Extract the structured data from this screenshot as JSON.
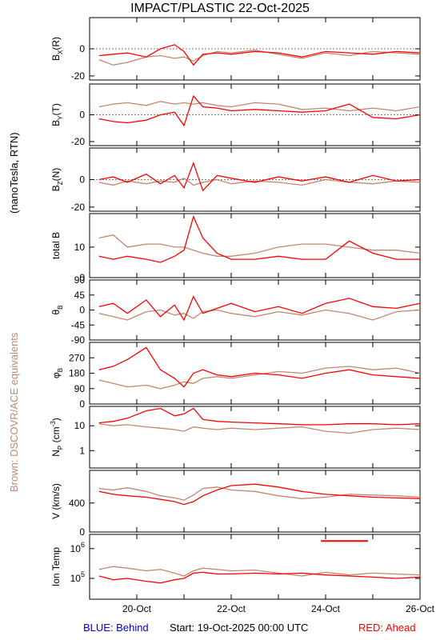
{
  "header": {
    "title": "IMPACT/PLASTIC   22-Oct-2025"
  },
  "side": {
    "units_label": "(nanoTesla, RTN)",
    "equiv_label": "Brown: DSCOVR/ACE equivalents"
  },
  "footer": {
    "behind_label": "BLUE: Behind",
    "start_label": "Start: 19-Oct-2025 00:00 UTC",
    "ahead_label": "RED: Ahead"
  },
  "colors": {
    "ahead": "#ff0000",
    "behind": "#0000cc",
    "reference": "#c08870",
    "axis": "#000000",
    "zero_line": "#555555"
  },
  "chart_data": {
    "type": "line",
    "x_ticks": [
      "20-Oct",
      "22-Oct",
      "24-Oct",
      "26-Oct"
    ],
    "x_range_days": [
      19.0,
      26.0
    ],
    "panels": [
      {
        "name": "Bx",
        "ylabel": "BX(R)",
        "label_main": "B",
        "label_sub": "X",
        "label_tail": "(R)",
        "ylim": [
          -23,
          23
        ],
        "ticks": [
          "0",
          "-20"
        ],
        "tick_values": [
          0,
          -20
        ],
        "zero_line": true,
        "series": [
          {
            "name": "Ahead",
            "x": [
              19.2,
              19.5,
              19.8,
              20.2,
              20.5,
              20.8,
              21.0,
              21.2,
              21.4,
              21.7,
              22.0,
              22.5,
              23.0,
              23.5,
              24.0,
              24.5,
              25.0,
              25.5,
              26.0
            ],
            "y": [
              -5,
              -4,
              -3,
              -6,
              0,
              3,
              -2,
              -12,
              -4,
              -3,
              -4,
              -2,
              -3,
              -6,
              -2,
              -3,
              -4,
              -2,
              -3
            ]
          },
          {
            "name": "DSCOVR/ACE",
            "x": [
              19.2,
              19.5,
              19.8,
              20.2,
              20.5,
              20.8,
              21.0,
              21.2,
              21.4,
              21.7,
              22.0,
              22.5,
              23.0,
              23.5,
              24.0,
              24.5,
              25.0,
              25.5,
              26.0
            ],
            "y": [
              -8,
              -12,
              -10,
              -6,
              -5,
              -7,
              -6,
              -9,
              -5,
              -2,
              -3,
              -1,
              -4,
              -7,
              -3,
              -5,
              -2,
              -3,
              -4
            ]
          }
        ]
      },
      {
        "name": "By",
        "ylabel": "BY(T)",
        "label_main": "B",
        "label_sub": "Y",
        "label_tail": "(T)",
        "ylim": [
          -23,
          23
        ],
        "ticks": [
          "0",
          "-20"
        ],
        "tick_values": [
          0,
          -20
        ],
        "zero_line": true,
        "series": [
          {
            "name": "Ahead",
            "x": [
              19.2,
              19.5,
              19.8,
              20.2,
              20.5,
              20.8,
              21.0,
              21.2,
              21.4,
              21.7,
              22.0,
              22.5,
              23.0,
              23.5,
              24.0,
              24.5,
              25.0,
              25.5,
              26.0
            ],
            "y": [
              -3,
              -5,
              -6,
              -4,
              0,
              2,
              -8,
              14,
              6,
              5,
              3,
              4,
              3,
              2,
              3,
              8,
              -2,
              -3,
              0
            ]
          },
          {
            "name": "DSCOVR/ACE",
            "x": [
              19.2,
              19.5,
              19.8,
              20.2,
              20.5,
              20.8,
              21.0,
              21.2,
              21.4,
              21.7,
              22.0,
              22.5,
              23.0,
              23.5,
              24.0,
              24.5,
              25.0,
              25.5,
              26.0
            ],
            "y": [
              6,
              8,
              9,
              7,
              10,
              8,
              9,
              8,
              9,
              7,
              6,
              9,
              8,
              4,
              5,
              3,
              5,
              3,
              6
            ]
          }
        ]
      },
      {
        "name": "Bz",
        "ylabel": "BZ(N)",
        "label_main": "B",
        "label_sub": "Z",
        "label_tail": "(N)",
        "ylim": [
          -23,
          23
        ],
        "ticks": [
          "0",
          "-20"
        ],
        "tick_values": [
          0,
          -20
        ],
        "zero_line": true,
        "series": [
          {
            "name": "Ahead",
            "x": [
              19.2,
              19.5,
              19.8,
              20.2,
              20.5,
              20.8,
              21.0,
              21.2,
              21.4,
              21.7,
              22.0,
              22.5,
              23.0,
              23.5,
              24.0,
              24.5,
              25.0,
              25.5,
              26.0
            ],
            "y": [
              0,
              2,
              -2,
              4,
              -3,
              3,
              -6,
              12,
              -8,
              3,
              1,
              -2,
              2,
              -1,
              2,
              -2,
              3,
              -1,
              0
            ]
          },
          {
            "name": "DSCOVR/ACE",
            "x": [
              19.2,
              19.5,
              19.8,
              20.2,
              20.5,
              20.8,
              21.0,
              21.2,
              21.4,
              21.7,
              22.0,
              22.5,
              23.0,
              23.5,
              24.0,
              24.5,
              25.0,
              25.5,
              26.0
            ],
            "y": [
              -2,
              -4,
              -1,
              -3,
              -1,
              -2,
              1,
              -4,
              -2,
              0,
              -3,
              -1,
              -2,
              -4,
              0,
              -2,
              -3,
              -1,
              -2
            ]
          }
        ]
      },
      {
        "name": "B",
        "ylabel": "total B",
        "label_main": "total B",
        "label_sub": "",
        "label_tail": "",
        "ylim": [
          0,
          21
        ],
        "ticks": [
          "10",
          "0"
        ],
        "tick_values": [
          10,
          0
        ],
        "zero_line": false,
        "series": [
          {
            "name": "Ahead",
            "x": [
              19.2,
              19.5,
              19.8,
              20.2,
              20.5,
              20.8,
              21.0,
              21.2,
              21.4,
              21.7,
              22.0,
              22.5,
              23.0,
              23.5,
              24.0,
              24.5,
              25.0,
              25.5,
              26.0
            ],
            "y": [
              7,
              6,
              7,
              6,
              5,
              7,
              9,
              20,
              13,
              8,
              6,
              6,
              7,
              6,
              6,
              12,
              8,
              6,
              6
            ]
          },
          {
            "name": "DSCOVR/ACE",
            "x": [
              19.2,
              19.5,
              19.8,
              20.2,
              20.5,
              20.8,
              21.0,
              21.2,
              21.4,
              21.7,
              22.0,
              22.5,
              23.0,
              23.5,
              24.0,
              24.5,
              25.0,
              25.5,
              26.0
            ],
            "y": [
              13,
              14,
              10,
              11,
              11,
              10,
              10,
              9,
              8,
              7,
              7,
              8,
              10,
              11,
              11,
              10,
              9,
              9,
              8
            ]
          }
        ]
      },
      {
        "name": "theta",
        "ylabel": "θB",
        "label_main": "θ",
        "label_sub": "B",
        "label_tail": "",
        "ylim": [
          -90,
          90
        ],
        "ticks": [
          "90",
          "45",
          "0",
          "-45",
          "-90"
        ],
        "tick_values": [
          90,
          45,
          0,
          -45,
          -90
        ],
        "zero_line": false,
        "series": [
          {
            "name": "Ahead",
            "x": [
              19.2,
              19.5,
              19.8,
              20.2,
              20.5,
              20.8,
              21.0,
              21.2,
              21.4,
              21.7,
              22.0,
              22.5,
              23.0,
              23.5,
              24.0,
              24.5,
              25.0,
              25.5,
              26.0
            ],
            "y": [
              10,
              20,
              -10,
              30,
              -20,
              15,
              -30,
              40,
              -10,
              5,
              20,
              -5,
              10,
              -10,
              20,
              35,
              10,
              5,
              20
            ]
          },
          {
            "name": "DSCOVR/ACE",
            "x": [
              19.2,
              19.5,
              19.8,
              20.2,
              20.5,
              20.8,
              21.0,
              21.2,
              21.4,
              21.7,
              22.0,
              22.5,
              23.0,
              23.5,
              24.0,
              24.5,
              25.0,
              25.5,
              26.0
            ],
            "y": [
              -10,
              -20,
              -30,
              -5,
              0,
              -15,
              -10,
              -25,
              -5,
              0,
              -10,
              -20,
              -5,
              -15,
              0,
              -10,
              -30,
              -5,
              0
            ]
          }
        ]
      },
      {
        "name": "phi",
        "ylabel": "φB",
        "label_main": "φ",
        "label_sub": "B",
        "label_tail": "",
        "ylim": [
          0,
          360
        ],
        "ticks": [
          "270",
          "180",
          "90",
          "0"
        ],
        "tick_values": [
          270,
          180,
          90,
          0
        ],
        "zero_line": false,
        "series": [
          {
            "name": "Ahead",
            "x": [
              19.2,
              19.5,
              19.8,
              20.2,
              20.5,
              20.8,
              21.0,
              21.2,
              21.4,
              21.7,
              22.0,
              22.5,
              23.0,
              23.5,
              24.0,
              24.5,
              25.0,
              25.5,
              26.0
            ],
            "y": [
              200,
              220,
              260,
              330,
              200,
              150,
              100,
              180,
              200,
              170,
              160,
              180,
              170,
              150,
              180,
              200,
              170,
              160,
              150
            ]
          },
          {
            "name": "DSCOVR/ACE",
            "x": [
              19.2,
              19.5,
              19.8,
              20.2,
              20.5,
              20.8,
              21.0,
              21.2,
              21.4,
              21.7,
              22.0,
              22.5,
              23.0,
              23.5,
              24.0,
              24.5,
              25.0,
              25.5,
              26.0
            ],
            "y": [
              140,
              120,
              100,
              110,
              90,
              110,
              130,
              120,
              150,
              160,
              150,
              170,
              190,
              180,
              210,
              220,
              200,
              210,
              180
            ]
          }
        ]
      },
      {
        "name": "Np",
        "ylabel": "NP (cm-3)",
        "label_main": "N",
        "label_sub": "P",
        "label_tail": " (cm",
        "label_sup": "-3",
        "label_close": ")",
        "scale": "log",
        "ylim": [
          0.2,
          60
        ],
        "ticks": [
          "10",
          "1"
        ],
        "tick_values": [
          10,
          1
        ],
        "zero_line": false,
        "series": [
          {
            "name": "Ahead",
            "x": [
              19.2,
              19.5,
              19.8,
              20.2,
              20.5,
              20.8,
              21.0,
              21.2,
              21.4,
              21.7,
              22.0,
              22.5,
              23.0,
              23.5,
              24.0,
              24.5,
              25.0,
              25.5,
              26.0
            ],
            "y": [
              13,
              15,
              20,
              40,
              50,
              25,
              30,
              50,
              18,
              15,
              14,
              13,
              12,
              11,
              11,
              12,
              12,
              11,
              12
            ]
          },
          {
            "name": "DSCOVR/ACE",
            "x": [
              19.2,
              19.5,
              19.8,
              20.2,
              20.5,
              20.8,
              21.0,
              21.2,
              21.4,
              21.7,
              22.0,
              22.5,
              23.0,
              23.5,
              24.0,
              24.5,
              25.0,
              25.5,
              26.0
            ],
            "y": [
              12,
              10,
              11,
              9,
              8,
              7,
              6,
              9,
              8,
              7,
              8,
              7,
              8,
              9,
              6,
              5,
              7,
              8,
              7
            ]
          }
        ]
      },
      {
        "name": "V",
        "ylabel": "V (km/s)",
        "label_main": "V (km/s)",
        "label_sub": "",
        "label_tail": "",
        "ylim": [
          0,
          850
        ],
        "ticks": [
          "400",
          "0"
        ],
        "tick_values": [
          400,
          0
        ],
        "zero_line": false,
        "series": [
          {
            "name": "Ahead",
            "x": [
              19.2,
              19.5,
              19.8,
              20.2,
              20.5,
              20.8,
              21.0,
              21.2,
              21.4,
              21.7,
              22.0,
              22.5,
              23.0,
              23.5,
              24.0,
              24.5,
              25.0,
              25.5,
              26.0
            ],
            "y": [
              560,
              520,
              500,
              480,
              450,
              420,
              380,
              420,
              500,
              580,
              640,
              660,
              620,
              560,
              520,
              500,
              480,
              470,
              460
            ]
          },
          {
            "name": "DSCOVR/ACE",
            "x": [
              19.2,
              19.5,
              19.8,
              20.2,
              20.5,
              20.8,
              21.0,
              21.2,
              21.4,
              21.7,
              22.0,
              22.5,
              23.0,
              23.5,
              24.0,
              24.5,
              25.0,
              25.5,
              26.0
            ],
            "y": [
              600,
              580,
              610,
              560,
              500,
              470,
              440,
              510,
              600,
              620,
              580,
              560,
              500,
              460,
              480,
              520,
              510,
              500,
              480
            ]
          }
        ]
      },
      {
        "name": "T",
        "ylabel": "Ion Temp",
        "label_main": "Ion Temp",
        "label_sub": "",
        "label_tail": "",
        "scale": "log",
        "ylim": [
          20000,
          3000000
        ],
        "ticks": [
          "10^6",
          "10^5"
        ],
        "tick_values": [
          1000000,
          100000
        ],
        "zero_line": false,
        "series": [
          {
            "name": "Ahead",
            "x": [
              19.2,
              19.5,
              19.8,
              20.2,
              20.5,
              20.8,
              21.0,
              21.2,
              21.4,
              21.7,
              22.0,
              22.5,
              23.0,
              23.5,
              24.0,
              24.5,
              25.0,
              25.5,
              26.0
            ],
            "y": [
              120000,
              90000,
              100000,
              80000,
              70000,
              90000,
              100000,
              150000,
              160000,
              140000,
              140000,
              150000,
              140000,
              150000,
              130000,
              120000,
              110000,
              100000,
              110000
            ]
          },
          {
            "name": "DSCOVR/ACE",
            "x": [
              19.2,
              19.5,
              19.8,
              20.2,
              20.5,
              20.8,
              21.0,
              21.2,
              21.4,
              21.7,
              22.0,
              22.5,
              23.0,
              23.5,
              24.0,
              24.5,
              25.0,
              25.5,
              26.0
            ],
            "y": [
              200000,
              250000,
              220000,
              180000,
              200000,
              150000,
              120000,
              180000,
              220000,
              200000,
              180000,
              190000,
              150000,
              120000,
              160000,
              130000,
              150000,
              140000,
              130000
            ]
          },
          {
            "name": "Ahead-segment",
            "x": [
              23.9,
              24.9
            ],
            "y": [
              1800000,
              1800000
            ]
          }
        ]
      }
    ]
  }
}
